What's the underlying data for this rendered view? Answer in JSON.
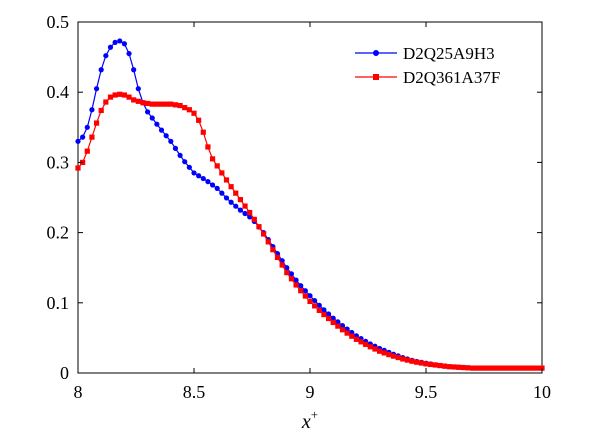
{
  "chart_data": {
    "type": "line",
    "xlabel": "x",
    "xlabel_sup": "+",
    "ylabel": "",
    "xlim": [
      8,
      10
    ],
    "ylim": [
      0,
      0.5
    ],
    "xticks": [
      8,
      8.5,
      9,
      9.5,
      10
    ],
    "xtick_labels": [
      "8",
      "8.5",
      "9",
      "9.5",
      "10"
    ],
    "yticks": [
      0,
      0.1,
      0.2,
      0.3,
      0.4,
      0.5
    ],
    "ytick_labels": [
      "0",
      "0.1",
      "0.2",
      "0.3",
      "0.4",
      "0.5"
    ],
    "grid": false,
    "legend_position": "top-right",
    "x_step": 0.02,
    "series": [
      {
        "name": "D2Q25A9H3",
        "color": "#0000ff",
        "marker": "circle",
        "control_points": [
          [
            8.0,
            0.33
          ],
          [
            8.02,
            0.336
          ],
          [
            8.04,
            0.35
          ],
          [
            8.06,
            0.375
          ],
          [
            8.08,
            0.405
          ],
          [
            8.1,
            0.432
          ],
          [
            8.12,
            0.452
          ],
          [
            8.14,
            0.464
          ],
          [
            8.16,
            0.471
          ],
          [
            8.18,
            0.473
          ],
          [
            8.2,
            0.469
          ],
          [
            8.22,
            0.455
          ],
          [
            8.24,
            0.432
          ],
          [
            8.26,
            0.405
          ],
          [
            8.28,
            0.385
          ],
          [
            8.3,
            0.372
          ],
          [
            8.35,
            0.35
          ],
          [
            8.4,
            0.33
          ],
          [
            8.45,
            0.305
          ],
          [
            8.5,
            0.285
          ],
          [
            8.55,
            0.275
          ],
          [
            8.6,
            0.263
          ],
          [
            8.65,
            0.246
          ],
          [
            8.7,
            0.232
          ],
          [
            8.75,
            0.22
          ],
          [
            8.8,
            0.2
          ],
          [
            8.85,
            0.175
          ],
          [
            8.9,
            0.15
          ],
          [
            8.95,
            0.128
          ],
          [
            9.0,
            0.11
          ],
          [
            9.05,
            0.093
          ],
          [
            9.1,
            0.078
          ],
          [
            9.15,
            0.065
          ],
          [
            9.2,
            0.053
          ],
          [
            9.25,
            0.043
          ],
          [
            9.3,
            0.035
          ],
          [
            9.35,
            0.028
          ],
          [
            9.4,
            0.022
          ],
          [
            9.45,
            0.017
          ],
          [
            9.5,
            0.014
          ],
          [
            9.55,
            0.011
          ],
          [
            9.6,
            0.009
          ],
          [
            9.65,
            0.008
          ],
          [
            9.7,
            0.007
          ],
          [
            9.8,
            0.007
          ],
          [
            9.9,
            0.007
          ],
          [
            10.0,
            0.007
          ]
        ]
      },
      {
        "name": "D2Q361A37F",
        "color": "#ff0000",
        "marker": "square",
        "control_points": [
          [
            8.0,
            0.292
          ],
          [
            8.02,
            0.3
          ],
          [
            8.04,
            0.316
          ],
          [
            8.06,
            0.336
          ],
          [
            8.08,
            0.356
          ],
          [
            8.1,
            0.374
          ],
          [
            8.12,
            0.386
          ],
          [
            8.14,
            0.393
          ],
          [
            8.16,
            0.396
          ],
          [
            8.18,
            0.397
          ],
          [
            8.2,
            0.396
          ],
          [
            8.22,
            0.393
          ],
          [
            8.24,
            0.389
          ],
          [
            8.28,
            0.385
          ],
          [
            8.32,
            0.383
          ],
          [
            8.4,
            0.383
          ],
          [
            8.44,
            0.381
          ],
          [
            8.48,
            0.375
          ],
          [
            8.5,
            0.37
          ],
          [
            8.52,
            0.36
          ],
          [
            8.54,
            0.343
          ],
          [
            8.56,
            0.322
          ],
          [
            8.58,
            0.305
          ],
          [
            8.6,
            0.295
          ],
          [
            8.65,
            0.27
          ],
          [
            8.7,
            0.247
          ],
          [
            8.75,
            0.224
          ],
          [
            8.8,
            0.198
          ],
          [
            8.85,
            0.17
          ],
          [
            8.9,
            0.143
          ],
          [
            8.95,
            0.121
          ],
          [
            9.0,
            0.102
          ],
          [
            9.05,
            0.086
          ],
          [
            9.1,
            0.072
          ],
          [
            9.15,
            0.059
          ],
          [
            9.2,
            0.048
          ],
          [
            9.25,
            0.039
          ],
          [
            9.3,
            0.031
          ],
          [
            9.35,
            0.025
          ],
          [
            9.4,
            0.02
          ],
          [
            9.45,
            0.016
          ],
          [
            9.5,
            0.013
          ],
          [
            9.55,
            0.011
          ],
          [
            9.6,
            0.009
          ],
          [
            9.65,
            0.008
          ],
          [
            9.7,
            0.007
          ],
          [
            9.8,
            0.007
          ],
          [
            9.9,
            0.007
          ],
          [
            10.0,
            0.007
          ]
        ]
      }
    ]
  }
}
